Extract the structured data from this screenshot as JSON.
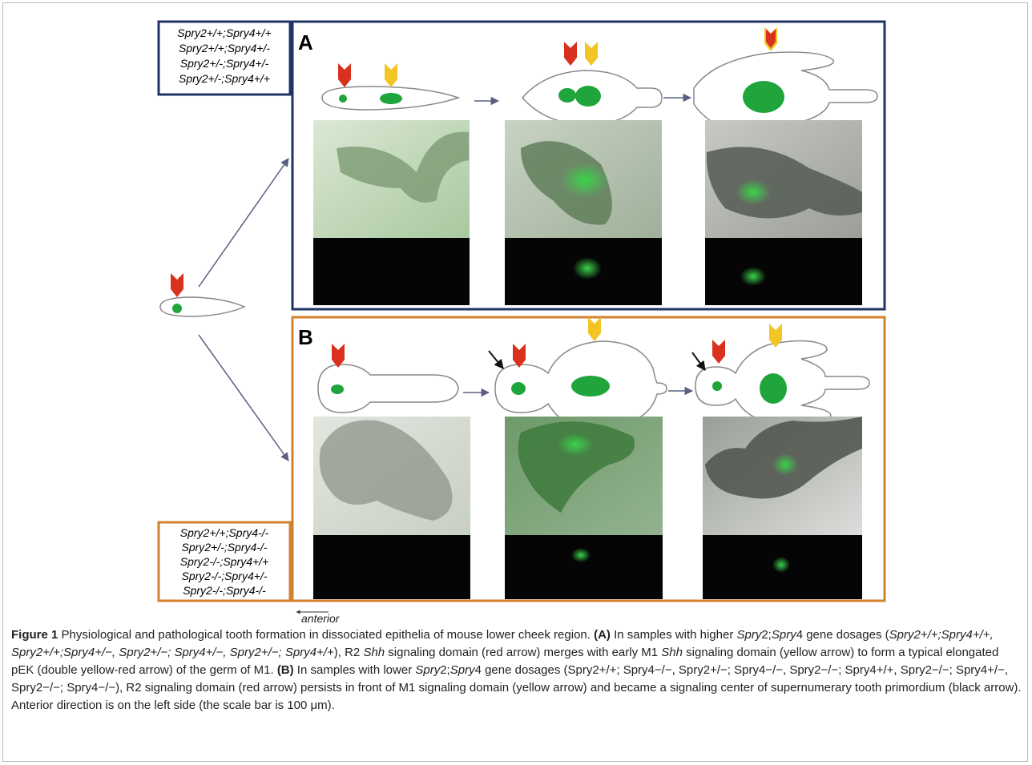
{
  "figure": {
    "panel_a": {
      "label": "A",
      "genotypes": [
        "Spry2+/+;Spry4+/+",
        "Spry2+/+;Spry4+/-",
        "Spry2+/-;Spry4+/-",
        "Spry2+/-;Spry4+/+"
      ]
    },
    "panel_b": {
      "label": "B",
      "genotypes": [
        "Spry2+/+;Spry4-/-",
        "Spry2+/-;Spry4-/-",
        "Spry2-/-;Spry4+/+",
        "Spry2-/-;Spry4+/-",
        "Spry2-/-;Spry4-/-"
      ]
    },
    "direction": "anterior"
  },
  "caption": {
    "runs": [
      {
        "text": "Figure 1",
        "style": "bold"
      },
      {
        "text": " Physiological and pathological tooth formation in dissociated epithelia of mouse lower cheek region. ",
        "style": "normal"
      },
      {
        "text": "(A)",
        "style": "bold"
      },
      {
        "text": " In samples with higher ",
        "style": "normal"
      },
      {
        "text": "Spry",
        "style": "italic"
      },
      {
        "text": "2;",
        "style": "normal"
      },
      {
        "text": "Spry",
        "style": "italic"
      },
      {
        "text": "4 gene dosages (",
        "style": "normal"
      },
      {
        "text": "Spry2+/+;Spry4+/+, Spry2+/+;Spry4+/−, Spry2+/−; Spry4+/−, Spry2+/−; Spry4+/+",
        "style": "italic"
      },
      {
        "text": "), R2 ",
        "style": "normal"
      },
      {
        "text": "Shh",
        "style": "italic"
      },
      {
        "text": " signaling domain (red arrow) merges with early M1 ",
        "style": "normal"
      },
      {
        "text": "Shh",
        "style": "italic"
      },
      {
        "text": " signaling domain (yellow arrow) to form a typical elongated pEK (double yellow-red arrow) of the germ of M1. ",
        "style": "normal"
      },
      {
        "text": "(B)",
        "style": "bold"
      },
      {
        "text": " In samples with lower ",
        "style": "normal"
      },
      {
        "text": "Spry",
        "style": "italic"
      },
      {
        "text": "2;",
        "style": "normal"
      },
      {
        "text": "Spry",
        "style": "italic"
      },
      {
        "text": "4 gene dosages (Spry2+/+; Spry4−/−, Spry2+/−; Spry4−/−, Spry2−/−; Spry4+/+, Spry2−/−; Spry4+/−, Spry2−/−; Spry4−/−), R2 signaling domain (red arrow) persists in front of M1 signaling domain (yellow arrow) and became a signaling center of supernumerary tooth primordium (black arrow). Anterior direction is on the left side (the scale bar is 100 μm).",
        "style": "normal"
      }
    ]
  }
}
